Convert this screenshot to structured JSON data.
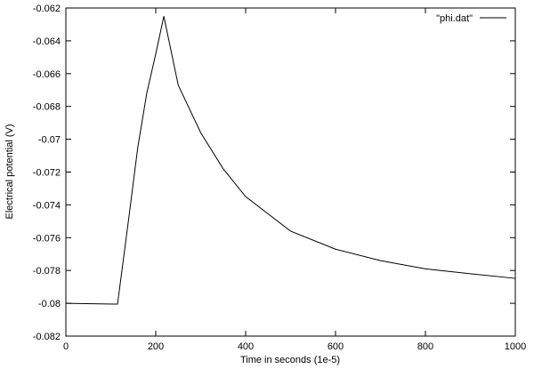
{
  "chart_data": {
    "type": "line",
    "xlabel": "Time in seconds (1e-5)",
    "ylabel": "Electrical potential (V)",
    "x": [
      0,
      115,
      140,
      160,
      180,
      200,
      218,
      250,
      300,
      350,
      400,
      500,
      600,
      700,
      800,
      900,
      1000
    ],
    "series": [
      {
        "name": "\"phi.dat\"",
        "color": "#000000",
        "values": [
          -0.08,
          -0.08005,
          -0.0748,
          -0.0705,
          -0.0672,
          -0.0648,
          -0.0625,
          -0.0667,
          -0.0696,
          -0.0718,
          -0.0735,
          -0.0756,
          -0.0767,
          -0.0774,
          -0.0779,
          -0.0782,
          -0.07848
        ]
      }
    ],
    "xlim": [
      0,
      1000
    ],
    "xticks": [
      0,
      200,
      400,
      600,
      800,
      1000
    ],
    "ylim": [
      -0.082,
      -0.062
    ],
    "yticks": [
      -0.082,
      -0.08,
      -0.078,
      -0.076,
      -0.074,
      -0.072,
      -0.07,
      -0.068,
      -0.066,
      -0.064,
      -0.062
    ],
    "legend": "top-right"
  }
}
